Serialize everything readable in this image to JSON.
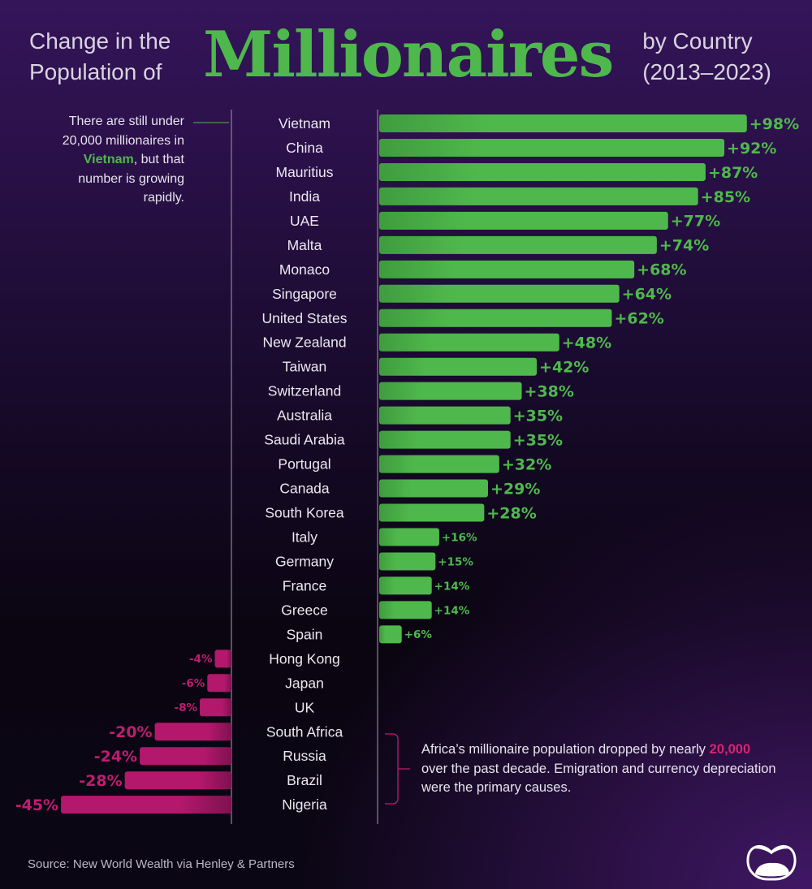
{
  "header": {
    "title_left": [
      "Change in the",
      "Population of"
    ],
    "title_main": "Millionaires",
    "title_right": [
      "by Country",
      "(2013–2023)"
    ]
  },
  "annotations": {
    "top": {
      "before": "There are still under 20,000 millionaires in ",
      "highlight": "Vietnam",
      "after": ", but that number is growing rapidly."
    },
    "bottom": {
      "before": "Africa’s millionaire population dropped by nearly ",
      "highlight": "20,000",
      "after": " over the past decade. Emigration and currency depreciation were the primary causes."
    }
  },
  "source": "Source: New World Wealth via Henley & Partners",
  "colors": {
    "positive": "#4fb84c",
    "negative": "#b3186c",
    "positive_label": "#4fb84c",
    "negative_label": "#c01c72"
  },
  "chart_data": {
    "type": "bar",
    "orientation": "horizontal",
    "categories": [
      "Vietnam",
      "China",
      "Mauritius",
      "India",
      "UAE",
      "Malta",
      "Monaco",
      "Singapore",
      "United States",
      "New Zealand",
      "Taiwan",
      "Switzerland",
      "Australia",
      "Saudi Arabia",
      "Portugal",
      "Canada",
      "South Korea",
      "Italy",
      "Germany",
      "France",
      "Greece",
      "Spain",
      "Hong Kong",
      "Japan",
      "UK",
      "South Africa",
      "Russia",
      "Brazil",
      "Nigeria"
    ],
    "values": [
      98,
      92,
      87,
      85,
      77,
      74,
      68,
      64,
      62,
      48,
      42,
      38,
      35,
      35,
      32,
      29,
      28,
      16,
      15,
      14,
      14,
      6,
      -4,
      -6,
      -8,
      -20,
      -24,
      -28,
      -45
    ],
    "labels": [
      "+98%",
      "+92%",
      "+87%",
      "+85%",
      "+77%",
      "+74%",
      "+68%",
      "+64%",
      "+62%",
      "+48%",
      "+42%",
      "+38%",
      "+35%",
      "+35%",
      "+32%",
      "+29%",
      "+28%",
      "+16%",
      "+15%",
      "+14%",
      "+14%",
      "+6%",
      "-4%",
      "-6%",
      "-8%",
      "-20%",
      "-24%",
      "-28%",
      "-45%"
    ],
    "unit": "%",
    "grid": false
  }
}
